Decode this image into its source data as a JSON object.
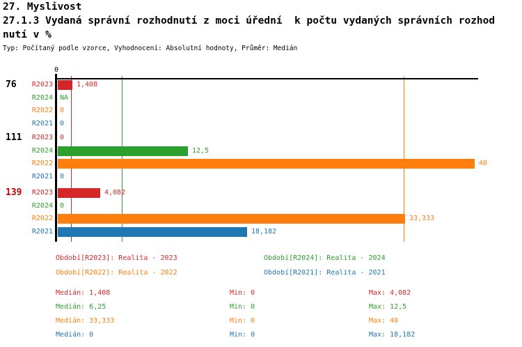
{
  "header": {
    "section": "27. Myslivost",
    "title_line1": "27.1.3 Vydaná správní rozhodnutí z moci úřední  k počtu vydaných správních rozhod",
    "title_line2": "nutí v %",
    "meta": "Typ: Počítaný podle vzorce, Vyhodnocení: Absolutní hodnoty, Průměr: Medián"
  },
  "axis": {
    "tick_zero": "0"
  },
  "colors": {
    "R2023": "#D62728",
    "R2024": "#2CA02C",
    "R2022": "#FF7F0E",
    "R2021": "#1F77B4",
    "axis": "#000000",
    "group_label_highlight": "#C00000"
  },
  "series": [
    {
      "id": "R2023",
      "label": "R2023",
      "color": "#D62728",
      "legend": "Období[R2023]: Realita - 2023",
      "median_value": 1.408,
      "stats": {
        "median": "Medián: 1,408",
        "min": "Min: 0",
        "max": "Max: 4,082"
      }
    },
    {
      "id": "R2024",
      "label": "R2024",
      "color": "#2CA02C",
      "legend": "Období[R2024]: Realita - 2024",
      "median_value": 6.25,
      "stats": {
        "median": "Medián: 6,25",
        "min": "Min: 0",
        "max": "Max: 12,5"
      }
    },
    {
      "id": "R2022",
      "label": "R2022",
      "color": "#FF7F0E",
      "legend": "Období[R2022]: Realita - 2022",
      "median_value": 33.333,
      "stats": {
        "median": "Medián: 33,333",
        "min": "Min: 0",
        "max": "Max: 40"
      }
    },
    {
      "id": "R2021",
      "label": "R2021",
      "color": "#1F77B4",
      "legend": "Období[R2021]: Realita - 2021",
      "median_value": 0,
      "stats": {
        "median": "Medián: 0",
        "min": "Min: 0",
        "max": "Max: 18,182"
      }
    }
  ],
  "chart_data": {
    "type": "bar",
    "orientation": "horizontal",
    "title": "27.1.3 Vydaná správní rozhodnutí z moci úřední k počtu vydaných správních rozhodnutí v %",
    "xlabel": "",
    "ylabel": "",
    "xlim": [
      0,
      40.5
    ],
    "x_tick_labels": [
      "0"
    ],
    "grid": false,
    "legend_position": "bottom",
    "row_order": [
      "R2023",
      "R2024",
      "R2022",
      "R2021"
    ],
    "groups": [
      {
        "label": "76",
        "label_color": "#000000",
        "values": {
          "R2023": 1.408,
          "R2024": null,
          "R2022": 0,
          "R2021": 0
        },
        "displays": {
          "R2023": "1,408",
          "R2024": "NA",
          "R2022": "0",
          "R2021": "0"
        }
      },
      {
        "label": "111",
        "label_color": "#000000",
        "values": {
          "R2023": 0,
          "R2024": 12.5,
          "R2022": 40,
          "R2021": 0
        },
        "displays": {
          "R2023": "0",
          "R2024": "12,5",
          "R2022": "40",
          "R2021": "0"
        }
      },
      {
        "label": "139",
        "label_color": "#C00000",
        "values": {
          "R2023": 4.082,
          "R2024": 0,
          "R2022": 33.333,
          "R2021": 18.182
        },
        "displays": {
          "R2023": "4,082",
          "R2024": "0",
          "R2022": "33,333",
          "R2021": "18,182"
        }
      }
    ],
    "median_lines": [
      {
        "series": "R2023",
        "value": 1.408
      },
      {
        "series": "R2024",
        "value": 6.25
      },
      {
        "series": "R2022",
        "value": 33.333
      },
      {
        "series": "R2021",
        "value": 0
      }
    ]
  }
}
